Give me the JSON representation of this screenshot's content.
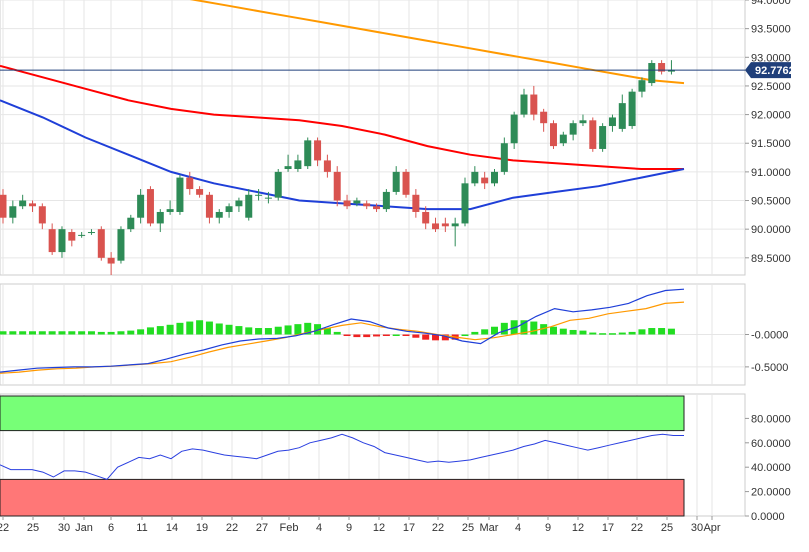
{
  "chart_data": [
    {
      "type": "candlestick",
      "panel": "price",
      "ylim": [
        89.2,
        94.0
      ],
      "yticks": [
        "89.5000",
        "90.0000",
        "90.5000",
        "91.0000",
        "91.5000",
        "92.0000",
        "92.5000",
        "93.0000",
        "93.5000",
        "94.0000"
      ],
      "last_price": "92.7762",
      "last_price_value": 92.7762,
      "candles": [
        [
          90.6,
          90.2,
          90.7,
          90.1
        ],
        [
          90.2,
          90.4,
          90.5,
          90.1
        ],
        [
          90.4,
          90.5,
          90.6,
          90.35
        ],
        [
          90.45,
          90.4,
          90.5,
          90.3
        ],
        [
          90.4,
          90.1,
          90.45,
          90.0
        ],
        [
          90.0,
          89.6,
          90.1,
          89.55
        ],
        [
          89.6,
          90.0,
          90.05,
          89.5
        ],
        [
          89.95,
          89.8,
          90.0,
          89.7
        ],
        [
          89.9,
          89.9,
          89.95,
          89.85
        ],
        [
          89.95,
          89.95,
          90.0,
          89.9
        ],
        [
          90.0,
          89.5,
          90.05,
          89.45
        ],
        [
          89.5,
          89.4,
          89.6,
          89.2
        ],
        [
          89.45,
          90.0,
          90.05,
          89.4
        ],
        [
          90.0,
          90.2,
          90.25,
          89.95
        ],
        [
          90.2,
          90.6,
          90.7,
          90.1
        ],
        [
          90.7,
          90.1,
          90.75,
          90.05
        ],
        [
          90.1,
          90.3,
          90.35,
          89.95
        ],
        [
          90.3,
          90.35,
          90.5,
          90.25
        ],
        [
          90.3,
          90.9,
          90.95,
          90.25
        ],
        [
          90.9,
          90.7,
          91.0,
          90.6
        ],
        [
          90.7,
          90.6,
          90.75,
          90.55
        ],
        [
          90.6,
          90.2,
          90.65,
          90.1
        ],
        [
          90.2,
          90.3,
          90.35,
          90.1
        ],
        [
          90.3,
          90.4,
          90.45,
          90.2
        ],
        [
          90.4,
          90.5,
          90.55,
          90.3
        ],
        [
          90.2,
          90.6,
          90.7,
          90.15
        ],
        [
          90.6,
          90.6,
          90.7,
          90.5
        ],
        [
          90.55,
          90.55,
          90.65,
          90.45
        ],
        [
          90.55,
          91.0,
          91.05,
          90.5
        ],
        [
          91.05,
          91.1,
          91.3,
          91.0
        ],
        [
          91.05,
          91.2,
          91.3,
          91.0
        ],
        [
          91.1,
          91.55,
          91.6,
          91.05
        ],
        [
          91.55,
          91.2,
          91.6,
          91.1
        ],
        [
          91.2,
          91.0,
          91.3,
          90.9
        ],
        [
          91.0,
          90.5,
          91.1,
          90.4
        ],
        [
          90.5,
          90.4,
          90.6,
          90.35
        ],
        [
          90.45,
          90.5,
          90.55,
          90.4
        ],
        [
          90.45,
          90.4,
          90.5,
          90.35
        ],
        [
          90.4,
          90.35,
          90.45,
          90.3
        ],
        [
          90.35,
          90.65,
          90.7,
          90.3
        ],
        [
          90.65,
          91.0,
          91.1,
          90.6
        ],
        [
          91.0,
          90.6,
          91.05,
          90.55
        ],
        [
          90.6,
          90.3,
          90.7,
          90.2
        ],
        [
          90.3,
          90.1,
          90.4,
          90.0
        ],
        [
          90.1,
          90.0,
          90.2,
          89.95
        ],
        [
          90.1,
          90.05,
          90.2,
          89.95
        ],
        [
          90.05,
          90.1,
          90.2,
          89.7
        ],
        [
          90.1,
          90.8,
          90.9,
          90.05
        ],
        [
          90.8,
          91.0,
          91.1,
          90.75
        ],
        [
          90.9,
          90.8,
          91.0,
          90.7
        ],
        [
          90.8,
          91.0,
          91.05,
          90.75
        ],
        [
          91.0,
          91.5,
          91.6,
          90.95
        ],
        [
          91.5,
          92.0,
          92.05,
          91.4
        ],
        [
          92.0,
          92.35,
          92.45,
          91.95
        ],
        [
          92.35,
          92.0,
          92.5,
          91.9
        ],
        [
          92.05,
          91.85,
          92.1,
          91.7
        ],
        [
          91.85,
          91.45,
          91.9,
          91.4
        ],
        [
          91.5,
          91.65,
          91.7,
          91.45
        ],
        [
          91.65,
          91.85,
          91.9,
          91.55
        ],
        [
          91.85,
          91.9,
          92.0,
          91.8
        ],
        [
          91.9,
          91.4,
          91.95,
          91.35
        ],
        [
          91.4,
          91.8,
          91.85,
          91.35
        ],
        [
          91.8,
          91.95,
          92.0,
          91.7
        ],
        [
          91.75,
          92.2,
          92.35,
          91.7
        ],
        [
          91.8,
          92.4,
          92.45,
          91.75
        ],
        [
          92.4,
          92.6,
          92.65,
          92.3
        ],
        [
          92.55,
          92.9,
          92.95,
          92.5
        ],
        [
          92.9,
          92.75,
          92.95,
          92.7
        ],
        [
          92.75,
          92.78,
          92.95,
          92.7
        ]
      ],
      "sma_orange": [
        94.6,
        94.5,
        94.4,
        94.3,
        94.2,
        94.1,
        94.0,
        93.9,
        93.8,
        93.7,
        93.6,
        93.5,
        93.4,
        93.3,
        93.2,
        93.1,
        93.0,
        92.9,
        92.8,
        92.7,
        92.6,
        92.55
      ],
      "sma_red": [
        92.85,
        92.65,
        92.45,
        92.25,
        92.1,
        92.0,
        91.95,
        91.9,
        91.8,
        91.65,
        91.45,
        91.3,
        91.2,
        91.15,
        91.1,
        91.05,
        91.05
      ],
      "sma_blue": [
        92.25,
        91.95,
        91.6,
        91.3,
        91.0,
        90.8,
        90.65,
        90.5,
        90.45,
        90.4,
        90.35,
        90.35,
        90.55,
        90.65,
        90.75,
        90.9,
        91.05
      ]
    },
    {
      "type": "histogram",
      "panel": "macd",
      "ylim": [
        -0.78,
        0.78
      ],
      "yticks": [
        "-0.5000",
        "-0.0000"
      ],
      "histogram": [
        0.05,
        0.05,
        0.05,
        0.05,
        0.05,
        0.05,
        0.05,
        0.05,
        0.05,
        0.05,
        0.04,
        0.04,
        0.05,
        0.06,
        0.08,
        0.11,
        0.13,
        0.15,
        0.18,
        0.2,
        0.22,
        0.2,
        0.17,
        0.15,
        0.13,
        0.11,
        0.1,
        0.1,
        0.12,
        0.14,
        0.16,
        0.18,
        0.16,
        0.1,
        0.04,
        -0.02,
        -0.04,
        -0.04,
        -0.03,
        -0.02,
        0.0,
        -0.02,
        -0.05,
        -0.08,
        -0.09,
        -0.09,
        -0.08,
        0.0,
        0.04,
        0.08,
        0.12,
        0.18,
        0.22,
        0.22,
        0.2,
        0.16,
        0.12,
        0.09,
        0.07,
        0.06,
        0.03,
        0.02,
        0.02,
        0.03,
        0.04,
        0.08,
        0.1,
        0.1,
        0.09
      ],
      "macd_line": [
        -0.58,
        -0.55,
        -0.52,
        -0.51,
        -0.5,
        -0.5,
        -0.49,
        -0.47,
        -0.45,
        -0.38,
        -0.3,
        -0.24,
        -0.16,
        -0.1,
        -0.07,
        -0.06,
        -0.02,
        0.05,
        0.15,
        0.24,
        0.2,
        0.1,
        0.05,
        0.02,
        -0.02,
        -0.1,
        -0.14,
        0.03,
        0.12,
        0.28,
        0.4,
        0.35,
        0.38,
        0.42,
        0.48,
        0.6,
        0.68,
        0.7
      ],
      "signal_line": [
        -0.6,
        -0.58,
        -0.55,
        -0.53,
        -0.52,
        -0.5,
        -0.49,
        -0.47,
        -0.45,
        -0.42,
        -0.35,
        -0.27,
        -0.2,
        -0.15,
        -0.1,
        -0.05,
        0.02,
        0.08,
        0.14,
        0.18,
        0.12,
        0.08,
        0.05,
        0.0,
        -0.04,
        -0.08,
        -0.05,
        0.0,
        0.05,
        0.12,
        0.22,
        0.25,
        0.32,
        0.36,
        0.4,
        0.48,
        0.5
      ]
    },
    {
      "type": "line",
      "panel": "rsi",
      "ylim": [
        0,
        100
      ],
      "yticks": [
        "0.0000",
        "20.0000",
        "40.0000",
        "60.0000",
        "80.0000"
      ],
      "overbought": 70,
      "oversold": 30,
      "rsi": [
        42,
        38,
        38,
        38,
        36,
        32,
        37,
        37,
        36,
        33,
        30,
        40,
        44,
        48,
        47,
        50,
        47,
        53,
        55,
        54,
        52,
        50,
        49,
        48,
        47,
        50,
        53,
        54,
        56,
        60,
        62,
        64,
        67,
        64,
        60,
        57,
        52,
        50,
        48,
        46,
        44,
        45,
        44,
        45,
        46,
        48,
        50,
        52,
        54,
        57,
        59,
        62,
        60,
        58,
        56,
        54,
        56,
        58,
        60,
        62,
        64,
        66,
        67,
        66,
        66
      ],
      "x_tick_labels": [
        "22",
        "25",
        "30",
        "Jan",
        "6",
        "11",
        "14",
        "19",
        "22",
        "27",
        "Feb",
        "4",
        "9",
        "12",
        "17",
        "22",
        "25",
        "Mar",
        "4",
        "9",
        "12",
        "17",
        "22",
        "25",
        "30",
        "Apr"
      ]
    }
  ],
  "colors": {
    "bull": "#2e8b57",
    "bear": "#d9534f",
    "sma_orange": "#ff9900",
    "sma_red": "#ff0000",
    "sma_blue": "#1f3fd8",
    "hist_pos": "#22dd22",
    "hist_neg": "#ee2222",
    "rsi_line": "#2a3fe0",
    "ob_zone": "#77ff77",
    "os_zone": "#ff7777",
    "badge": "#1f3f7a"
  }
}
